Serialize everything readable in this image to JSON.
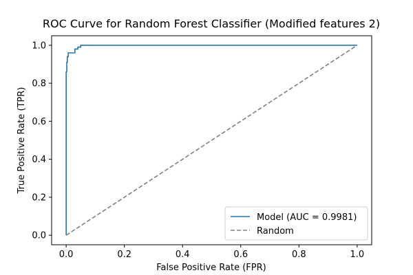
{
  "chart_data": {
    "type": "line",
    "title": "ROC Curve for  Random Forest Classifier (Modified features 2)",
    "xlabel": "False Positive Rate (FPR)",
    "ylabel": "True Positive Rate (TPR)",
    "xlim": [
      -0.05,
      1.05
    ],
    "ylim": [
      -0.05,
      1.05
    ],
    "xticks": [
      "0.0",
      "0.2",
      "0.4",
      "0.6",
      "0.8",
      "1.0"
    ],
    "yticks": [
      "0.0",
      "0.2",
      "0.4",
      "0.6",
      "0.8",
      "1.0"
    ],
    "grid": false,
    "legend_position": "bottom-right",
    "series": [
      {
        "name": "Model (AUC = 0.9981)",
        "color": "#1f77b4",
        "style": "solid",
        "x": [
          0.0,
          0.0,
          0.002,
          0.002,
          0.004,
          0.004,
          0.007,
          0.007,
          0.03,
          0.03,
          0.04,
          0.04,
          0.05,
          0.05,
          1.0
        ],
        "y": [
          0.0,
          0.86,
          0.86,
          0.91,
          0.91,
          0.94,
          0.94,
          0.96,
          0.96,
          0.98,
          0.98,
          0.99,
          0.99,
          1.0,
          1.0
        ]
      },
      {
        "name": "Random",
        "color": "#808080",
        "style": "dashed",
        "x": [
          0.0,
          1.0
        ],
        "y": [
          0.0,
          1.0
        ]
      }
    ]
  }
}
